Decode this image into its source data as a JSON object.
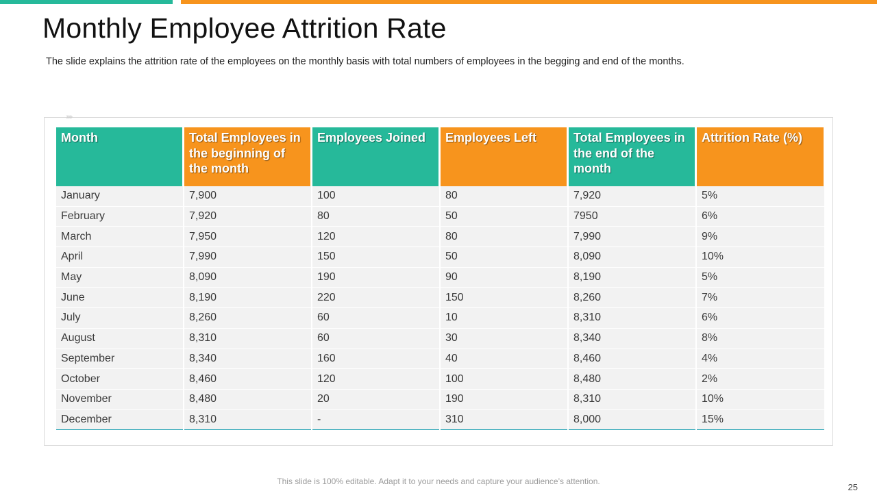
{
  "slide": {
    "title": "Monthly Employee Attrition Rate",
    "subtitle": "The slide explains the attrition rate of the employees on the monthly basis with total numbers of employees in the begging and end of the months.",
    "footnote": "This slide is 100% editable. Adapt it to your needs and capture your audience’s attention.",
    "page_number": "25",
    "colors": {
      "teal": "#26b99a",
      "orange": "#f7941d",
      "row_bg": "#f2f2f2"
    }
  },
  "table": {
    "headers": [
      "Month",
      "Total Employees in the beginning of the month",
      "Employees Joined",
      "Employees Left",
      "Total Employees in the end of the month",
      "Attrition Rate (%)"
    ],
    "rows": [
      [
        "January",
        "7,900",
        "100",
        "80",
        "7,920",
        "5%"
      ],
      [
        "February",
        "7,920",
        "80",
        "50",
        "7950",
        "6%"
      ],
      [
        "March",
        "7,950",
        "120",
        "80",
        "7,990",
        "9%"
      ],
      [
        "April",
        "7,990",
        "150",
        "50",
        "8,090",
        "10%"
      ],
      [
        "May",
        "8,090",
        "190",
        "90",
        "8,190",
        "5%"
      ],
      [
        "June",
        "8,190",
        "220",
        "150",
        "8,260",
        "7%"
      ],
      [
        "July",
        "8,260",
        "60",
        "10",
        "8,310",
        "6%"
      ],
      [
        "August",
        "8,310",
        "60",
        "30",
        "8,340",
        "8%"
      ],
      [
        "September",
        "8,340",
        "160",
        "40",
        "8,460",
        "4%"
      ],
      [
        "October",
        "8,460",
        "120",
        "100",
        "8,480",
        "2%"
      ],
      [
        "November",
        "8,480",
        "20",
        "190",
        "8,310",
        "10%"
      ],
      [
        "December",
        "8,310",
        "-",
        "310",
        "8,000",
        "15%"
      ]
    ]
  }
}
